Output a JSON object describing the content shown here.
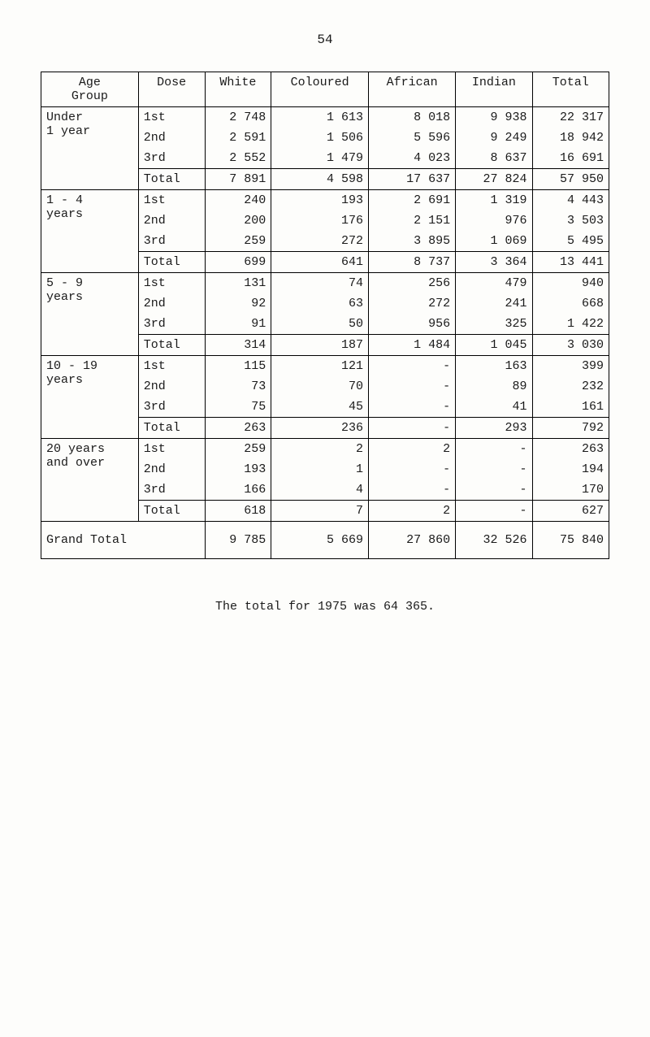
{
  "page_number": "54",
  "caption": "The total for 1975 was 64 365.",
  "table": {
    "headers": [
      "Age\nGroup",
      "Dose",
      "White",
      "Coloured",
      "African",
      "Indian",
      "Total"
    ],
    "groups": [
      {
        "age": "Under\n1 year",
        "rows": [
          [
            "1st",
            "2 748",
            "1 613",
            "8 018",
            "9 938",
            "22 317"
          ],
          [
            "2nd",
            "2 591",
            "1 506",
            "5 596",
            "9 249",
            "18 942"
          ],
          [
            "3rd",
            "2 552",
            "1 479",
            "4 023",
            "8 637",
            "16 691"
          ]
        ],
        "total": [
          "Total",
          "7 891",
          "4 598",
          "17 637",
          "27 824",
          "57 950"
        ]
      },
      {
        "age": "1 - 4\nyears",
        "rows": [
          [
            "1st",
            "240",
            "193",
            "2 691",
            "1 319",
            "4 443"
          ],
          [
            "2nd",
            "200",
            "176",
            "2 151",
            "976",
            "3 503"
          ],
          [
            "3rd",
            "259",
            "272",
            "3 895",
            "1 069",
            "5 495"
          ]
        ],
        "total": [
          "Total",
          "699",
          "641",
          "8 737",
          "3 364",
          "13 441"
        ]
      },
      {
        "age": "5 - 9\nyears",
        "rows": [
          [
            "1st",
            "131",
            "74",
            "256",
            "479",
            "940"
          ],
          [
            "2nd",
            "92",
            "63",
            "272",
            "241",
            "668"
          ],
          [
            "3rd",
            "91",
            "50",
            "956",
            "325",
            "1 422"
          ]
        ],
        "total": [
          "Total",
          "314",
          "187",
          "1 484",
          "1 045",
          "3 030"
        ]
      },
      {
        "age": "10 - 19\nyears",
        "rows": [
          [
            "1st",
            "115",
            "121",
            "-",
            "163",
            "399"
          ],
          [
            "2nd",
            "73",
            "70",
            "-",
            "89",
            "232"
          ],
          [
            "3rd",
            "75",
            "45",
            "-",
            "41",
            "161"
          ]
        ],
        "total": [
          "Total",
          "263",
          "236",
          "-",
          "293",
          "792"
        ]
      },
      {
        "age": "20 years\nand over",
        "rows": [
          [
            "1st",
            "259",
            "2",
            "2",
            "-",
            "263"
          ],
          [
            "2nd",
            "193",
            "1",
            "-",
            "-",
            "194"
          ],
          [
            "3rd",
            "166",
            "4",
            "-",
            "-",
            "170"
          ]
        ],
        "total": [
          "Total",
          "618",
          "7",
          "2",
          "-",
          "627"
        ]
      }
    ],
    "grand_total": [
      "Grand Total",
      "9 785",
      "5 669",
      "27 860",
      "32 526",
      "75 840"
    ]
  }
}
